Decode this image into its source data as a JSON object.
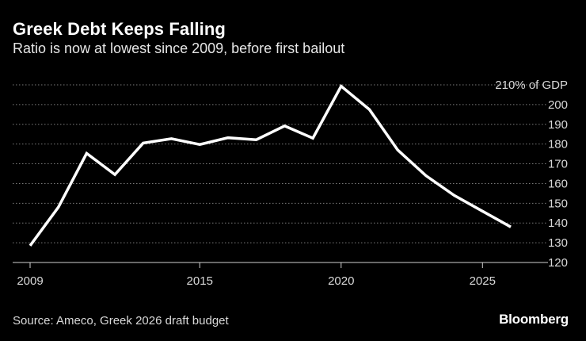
{
  "header": {
    "title": "Greek Debt Keeps Falling",
    "subtitle": "Ratio is now at lowest since 2009, before first bailout"
  },
  "footer": {
    "source": "Source: Ameco, Greek 2026 draft budget",
    "brand": "Bloomberg"
  },
  "colors": {
    "background": "#000000",
    "line": "#ffffff",
    "grid": "#7a7a7a",
    "text": "#ffffff"
  },
  "chart_data": {
    "type": "line",
    "title": "Greek Debt Keeps Falling",
    "subtitle": "Ratio is now at lowest since 2009, before first bailout",
    "xlabel": "",
    "ylabel": "",
    "y_unit_label": "210% of GDP",
    "xlim": [
      2009,
      2026
    ],
    "ylim": [
      120,
      210
    ],
    "xticks": [
      2009,
      2015,
      2020,
      2025
    ],
    "yticks": [
      120,
      130,
      140,
      150,
      160,
      170,
      180,
      190,
      200,
      210
    ],
    "ytick_labels": [
      "120",
      "130",
      "140",
      "150",
      "160",
      "170",
      "180",
      "190",
      "200",
      "210% of GDP"
    ],
    "grid": "horizontal dotted",
    "legend": "none",
    "series": [
      {
        "x": [
          2009,
          2010,
          2011,
          2012,
          2013,
          2014,
          2015,
          2016,
          2017,
          2018,
          2019,
          2020,
          2021,
          2022,
          2023,
          2024,
          2025,
          2026
        ],
        "y": [
          128.5,
          148,
          175.3,
          164.5,
          180.5,
          182.7,
          179.8,
          183.2,
          182.2,
          189.2,
          183,
          209.3,
          197.5,
          177,
          164,
          154,
          146,
          138
        ]
      }
    ]
  }
}
